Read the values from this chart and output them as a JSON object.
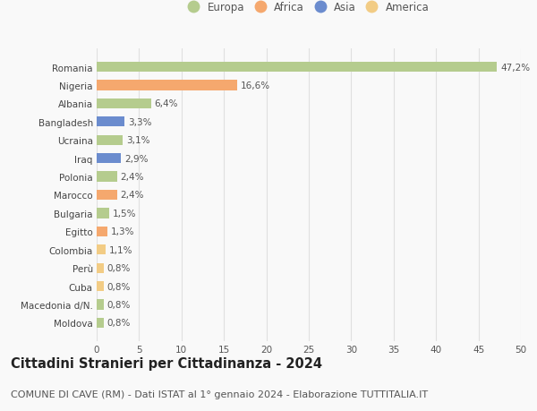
{
  "categories": [
    "Moldova",
    "Macedonia d/N.",
    "Cuba",
    "Perù",
    "Colombia",
    "Egitto",
    "Bulgaria",
    "Marocco",
    "Polonia",
    "Iraq",
    "Ucraina",
    "Bangladesh",
    "Albania",
    "Nigeria",
    "Romania"
  ],
  "values": [
    0.8,
    0.8,
    0.8,
    0.8,
    1.1,
    1.3,
    1.5,
    2.4,
    2.4,
    2.9,
    3.1,
    3.3,
    6.4,
    16.6,
    47.2
  ],
  "labels": [
    "0,8%",
    "0,8%",
    "0,8%",
    "0,8%",
    "1,1%",
    "1,3%",
    "1,5%",
    "2,4%",
    "2,4%",
    "2,9%",
    "3,1%",
    "3,3%",
    "6,4%",
    "16,6%",
    "47,2%"
  ],
  "colors": [
    "#b5cc8e",
    "#b5cc8e",
    "#f2cc85",
    "#f2cc85",
    "#f2cc85",
    "#f5a86e",
    "#b5cc8e",
    "#f5a86e",
    "#b5cc8e",
    "#6b8cce",
    "#b5cc8e",
    "#6b8cce",
    "#b5cc8e",
    "#f5a86e",
    "#b5cc8e"
  ],
  "continent_colors": {
    "Europa": "#b5cc8e",
    "Africa": "#f5a86e",
    "Asia": "#6b8cce",
    "America": "#f2cc85"
  },
  "legend_order": [
    "Europa",
    "Africa",
    "Asia",
    "America"
  ],
  "xlim": [
    0,
    50
  ],
  "xticks": [
    0,
    5,
    10,
    15,
    20,
    25,
    30,
    35,
    40,
    45,
    50
  ],
  "title": "Cittadini Stranieri per Cittadinanza - 2024",
  "subtitle": "COMUNE DI CAVE (RM) - Dati ISTAT al 1° gennaio 2024 - Elaborazione TUTTITALIA.IT",
  "background_color": "#f9f9f9",
  "grid_color": "#e0e0e0",
  "bar_height": 0.55,
  "title_fontsize": 10.5,
  "subtitle_fontsize": 8,
  "label_fontsize": 7.5,
  "tick_fontsize": 7.5,
  "legend_fontsize": 8.5
}
